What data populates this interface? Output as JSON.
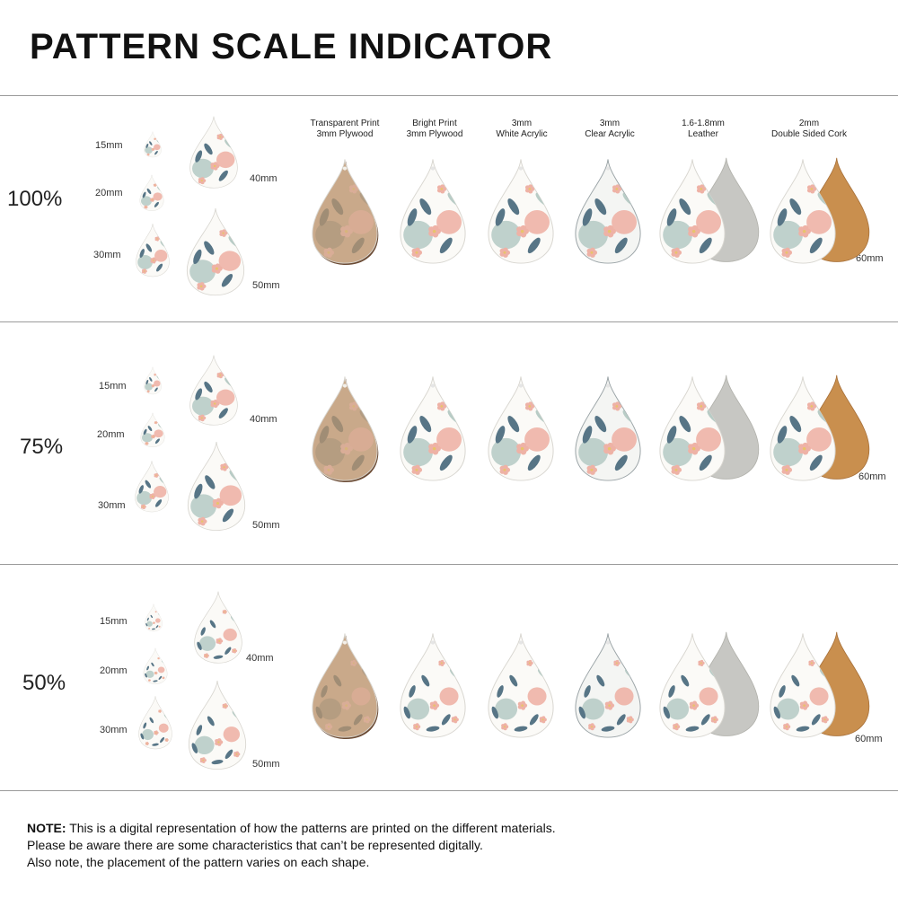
{
  "title": "PATTERN SCALE INDICATOR",
  "materials": [
    {
      "line1": "Transparent Print",
      "line2": "3mm Plywood"
    },
    {
      "line1": "Bright Print",
      "line2": "3mm Plywood"
    },
    {
      "line1": "3mm",
      "line2": "White Acrylic"
    },
    {
      "line1": "3mm",
      "line2": "Clear Acrylic"
    },
    {
      "line1": "1.6-1.8mm",
      "line2": "Leather"
    },
    {
      "line1": "2mm",
      "line2": "Double Sided Cork"
    }
  ],
  "sections": [
    {
      "scale": "100%",
      "sizes": [
        "15mm",
        "20mm",
        "30mm",
        "40mm",
        "50mm"
      ],
      "material_size": "60mm"
    },
    {
      "scale": "75%",
      "sizes": [
        "15mm",
        "20mm",
        "30mm",
        "40mm",
        "50mm"
      ],
      "material_size": "60mm"
    },
    {
      "scale": "50%",
      "sizes": [
        "15mm",
        "20mm",
        "30mm",
        "40mm",
        "50mm"
      ],
      "material_size": "60mm"
    }
  ],
  "note": {
    "label": "NOTE:",
    "line1": " This is a digital representation of how the patterns are printed on the different materials.",
    "line2": "Please be aware there are some characteristics that can’t be represented digitally.",
    "line3": "Also note, the placement of the pattern varies on each shape."
  },
  "colors": {
    "plywood_transparent": "#c9a98a",
    "plywood_edge": "#6b4a33",
    "white_fill": "#fbfaf7",
    "leather_back": "#c7c7c3",
    "cork": "#c98f4e",
    "pink": "#eeb2a6",
    "blue_leaf": "#577586",
    "sage": "#b8ccc6"
  }
}
